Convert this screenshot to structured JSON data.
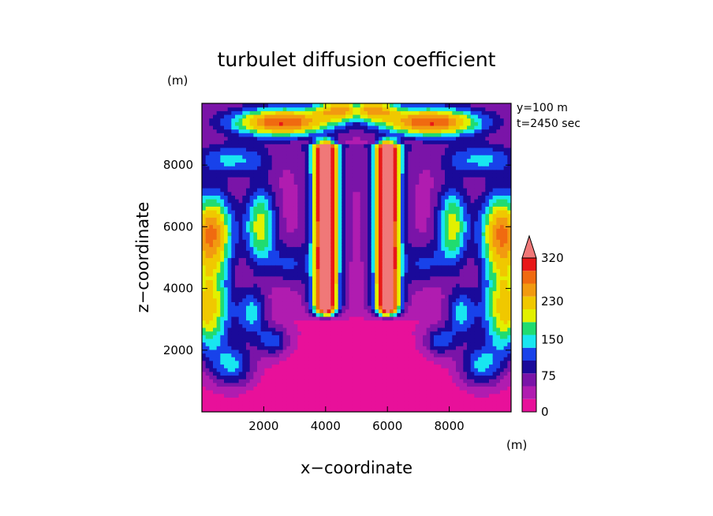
{
  "chart_data": {
    "type": "heatmap",
    "title": "turbulet diffusion coefficient",
    "xlabel": "x−coordinate",
    "ylabel": "z−coordinate",
    "x_unit": "(m)",
    "y_unit": "(m)",
    "annotations": [
      "y=100 m",
      "t=2450 sec"
    ],
    "xlim": [
      0,
      10000
    ],
    "ylim": [
      0,
      10000
    ],
    "x_ticks": [
      2000,
      4000,
      6000,
      8000
    ],
    "y_ticks": [
      2000,
      4000,
      6000,
      8000
    ],
    "grid": false,
    "colorbar": {
      "placement": "right",
      "tick_labels": [
        "0",
        "75",
        "150",
        "230",
        "320"
      ],
      "tick_values": [
        0,
        75,
        150,
        230,
        320
      ],
      "extend": "max",
      "levels": [
        0,
        25,
        50,
        75,
        100,
        125,
        150,
        175,
        200,
        230,
        260,
        290,
        320
      ],
      "colors": [
        "#e8109a",
        "#b01cb0",
        "#7a14a8",
        "#1a0a9a",
        "#1842ea",
        "#18e6f0",
        "#20dc70",
        "#e2f000",
        "#f0c800",
        "#f29a10",
        "#f06a10",
        "#e81818",
        "#f07878"
      ]
    }
  }
}
